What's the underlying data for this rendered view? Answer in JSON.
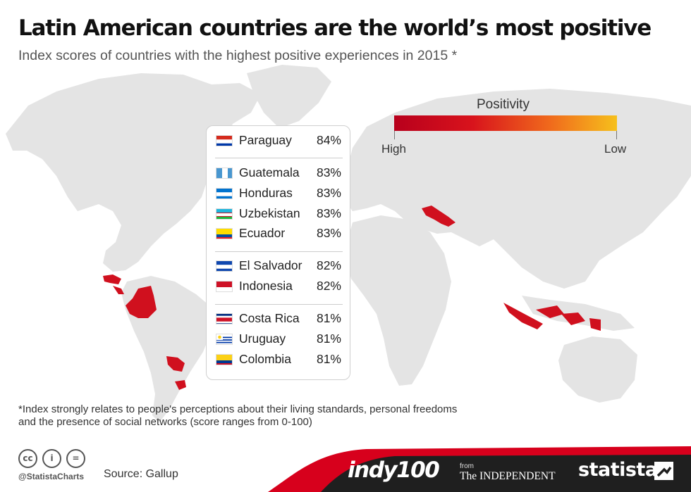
{
  "header": {
    "title": "Latin American countries are the world’s most positive",
    "subtitle": "Index scores of countries with the highest positive experiences in 2015 *"
  },
  "legend": {
    "title": "Positivity",
    "high_label": "High",
    "low_label": "Low",
    "colors": [
      "#b8001c",
      "#d8131c",
      "#f06a1c",
      "#f6c01c"
    ]
  },
  "chart_data": {
    "type": "table",
    "unit": "%",
    "rows": [
      {
        "country": "Paraguay",
        "value": 84,
        "label": "84%",
        "flag": "paraguay-flag"
      },
      {
        "country": "Guatemala",
        "value": 83,
        "label": "83%",
        "flag": "guatemala-flag"
      },
      {
        "country": "Honduras",
        "value": 83,
        "label": "83%",
        "flag": "honduras-flag"
      },
      {
        "country": "Uzbekistan",
        "value": 83,
        "label": "83%",
        "flag": "uzbekistan-flag"
      },
      {
        "country": "Ecuador",
        "value": 83,
        "label": "83%",
        "flag": "ecuador-flag"
      },
      {
        "country": "El Salvador",
        "value": 82,
        "label": "82%",
        "flag": "el-salvador-flag"
      },
      {
        "country": "Indonesia",
        "value": 82,
        "label": "82%",
        "flag": "indonesia-flag"
      },
      {
        "country": "Costa Rica",
        "value": 81,
        "label": "81%",
        "flag": "costa-rica-flag"
      },
      {
        "country": "Uruguay",
        "value": 81,
        "label": "81%",
        "flag": "uruguay-flag"
      },
      {
        "country": "Colombia",
        "value": 81,
        "label": "81%",
        "flag": "colombia-flag"
      }
    ],
    "map_highlight_color": "#d0101e",
    "map_land_color": "#e4e4e4"
  },
  "footnote": {
    "line1": "*Index strongly relates to people's perceptions about their living standards, personal freedoms",
    "line2": "and the presence of social networks (score ranges from 0-100)"
  },
  "footer": {
    "handle": "@StatistaCharts",
    "source": "Source: Gallup",
    "cc_icons": [
      "cc-icon",
      "by-icon",
      "nd-icon"
    ],
    "cc_glyphs": [
      "cc",
      "i",
      "="
    ],
    "partner_indy": "indy100",
    "partner_from": "from",
    "partner_independent": "The INDEPENDENT",
    "brand": "statista",
    "band_color": "#d7001c",
    "dark_color": "#1f1f1f"
  }
}
